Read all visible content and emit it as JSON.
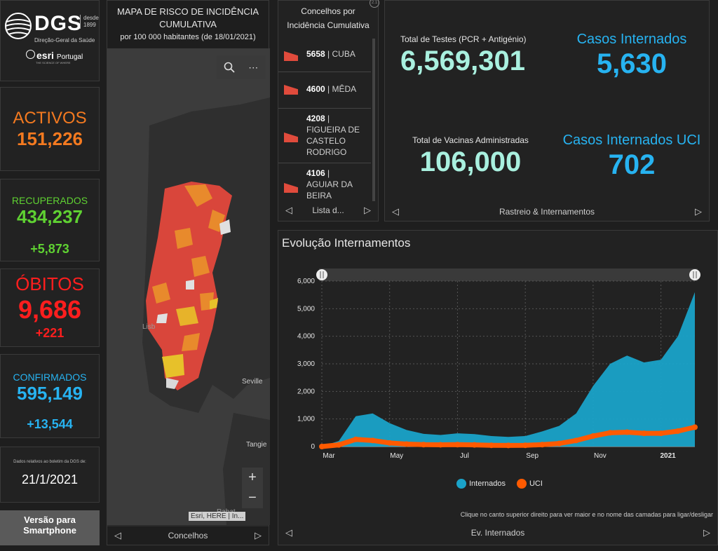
{
  "brand": {
    "logo_text": "DGS",
    "desde": "desde",
    "year": "1899",
    "subtitle": "Direção-Geral da Saúde",
    "esri": "esri",
    "esri_country": "Portugal",
    "esri_tag": "THE SCIENCE OF WHERE"
  },
  "stats": {
    "activos": {
      "label": "ACTIVOS",
      "value": "151,226",
      "color": "#f47a20"
    },
    "recuperados": {
      "label": "RECUPERADOS",
      "value": "434,237",
      "delta": "+5,873",
      "color": "#5fd132"
    },
    "obitos": {
      "label": "ÓBITOS",
      "value": "9,686",
      "delta": "+221",
      "color": "#ff1e1e"
    },
    "confirmados": {
      "label": "CONFIRMADOS",
      "value": "595,149",
      "delta": "+13,544",
      "color": "#27b3f1"
    }
  },
  "date_box": {
    "note": "Dados relativos ao boletim da DGS de:",
    "date": "21/1/2021"
  },
  "smartphone_button": {
    "line1": "Versão para",
    "line2": "Smartphone"
  },
  "map": {
    "title1": "MAPA DE RISCO DE INCIDÊNCIA",
    "title2": "CUMULATIVA",
    "subtitle": "por 100 000 habitantes (de 18/01/2021)",
    "labels": {
      "seville": "Seville",
      "tangier": "Tangie",
      "lisboa": "Lisb",
      "rabat": "Rabat"
    },
    "attribution": "Esri, HERE | In...",
    "nav_label": "Concelhos"
  },
  "list": {
    "header1": "Concelhos por",
    "header2": "Incidência Cumulativa",
    "items": [
      {
        "value": "5658",
        "name": "CUBA"
      },
      {
        "value": "4600",
        "name": "MÊDA"
      },
      {
        "value": "4208",
        "name": "FIGUEIRA DE CASTELO RODRIGO"
      },
      {
        "value": "4106",
        "name": "AGUIAR DA BEIRA"
      }
    ],
    "nav_label": "Lista d..."
  },
  "indicators": {
    "testes": {
      "label": "Total de Testes (PCR + Antigénio)",
      "value": "6,569,301"
    },
    "internados": {
      "label": "Casos Internados",
      "value": "5,630"
    },
    "vacinas": {
      "label": "Total de Vacinas Administradas",
      "value": "106,000"
    },
    "uci": {
      "label": "Casos Internados UCI",
      "value": "702"
    },
    "nav_label": "Rastreio & Internamentos"
  },
  "chart_panel": {
    "title": "Evolução Internamentos",
    "hint": "Clique no canto superior direito para ver maior e no nome das camadas para ligar/desligar",
    "nav_label": "Ev. Internados"
  },
  "chart_data": {
    "type": "area",
    "title": "Evolução Internamentos",
    "xlabel": "",
    "ylabel": "",
    "ylim": [
      0,
      6000
    ],
    "yticks": [
      "0",
      "1,000",
      "2,000",
      "3,000",
      "4,000",
      "5,000",
      "6,000"
    ],
    "xticks": [
      "Mar",
      "May",
      "Jul",
      "Sep",
      "Nov",
      "2021"
    ],
    "x": [
      "Mar 1",
      "Mar 15",
      "Apr 1",
      "Apr 15",
      "May 1",
      "May 15",
      "Jun 1",
      "Jun 15",
      "Jul 1",
      "Jul 15",
      "Aug 1",
      "Aug 15",
      "Sep 1",
      "Sep 15",
      "Oct 1",
      "Oct 15",
      "Nov 1",
      "Nov 15",
      "Dec 1",
      "Dec 15",
      "Jan 1",
      "Jan 10",
      "Jan 21"
    ],
    "series": [
      {
        "name": "Internados",
        "color": "#1aa3c9",
        "values": [
          10,
          200,
          1100,
          1200,
          850,
          600,
          460,
          420,
          480,
          450,
          380,
          350,
          380,
          550,
          750,
          1200,
          2200,
          3000,
          3300,
          3050,
          3150,
          4000,
          5600
        ]
      },
      {
        "name": "UCI",
        "color": "#ff5a00",
        "values": [
          0,
          60,
          260,
          220,
          130,
          90,
          70,
          65,
          70,
          60,
          45,
          40,
          45,
          70,
          110,
          220,
          380,
          500,
          520,
          480,
          480,
          560,
          702
        ]
      }
    ]
  }
}
